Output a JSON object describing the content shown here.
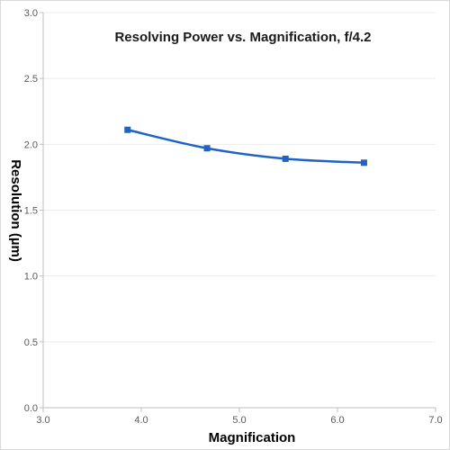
{
  "chart_data": {
    "type": "line",
    "title": "Resolving Power vs. Magnification, f/4.2",
    "xlabel": "Magnification",
    "ylabel": "Resolution (µm)",
    "xlim": [
      3.0,
      7.0
    ],
    "ylim": [
      0.0,
      3.0
    ],
    "x_ticks": [
      "3.0",
      "4.0",
      "5.0",
      "6.0",
      "7.0"
    ],
    "y_ticks": [
      "0.0",
      "0.5",
      "1.0",
      "1.5",
      "2.0",
      "2.5",
      "3.0"
    ],
    "grid": "horizontal",
    "series": [
      {
        "x": [
          3.86,
          4.67,
          5.47,
          6.27
        ],
        "y": [
          2.11,
          1.97,
          1.89,
          1.86
        ],
        "color": "#1f63c7",
        "marker": "square",
        "smooth": true
      }
    ]
  }
}
